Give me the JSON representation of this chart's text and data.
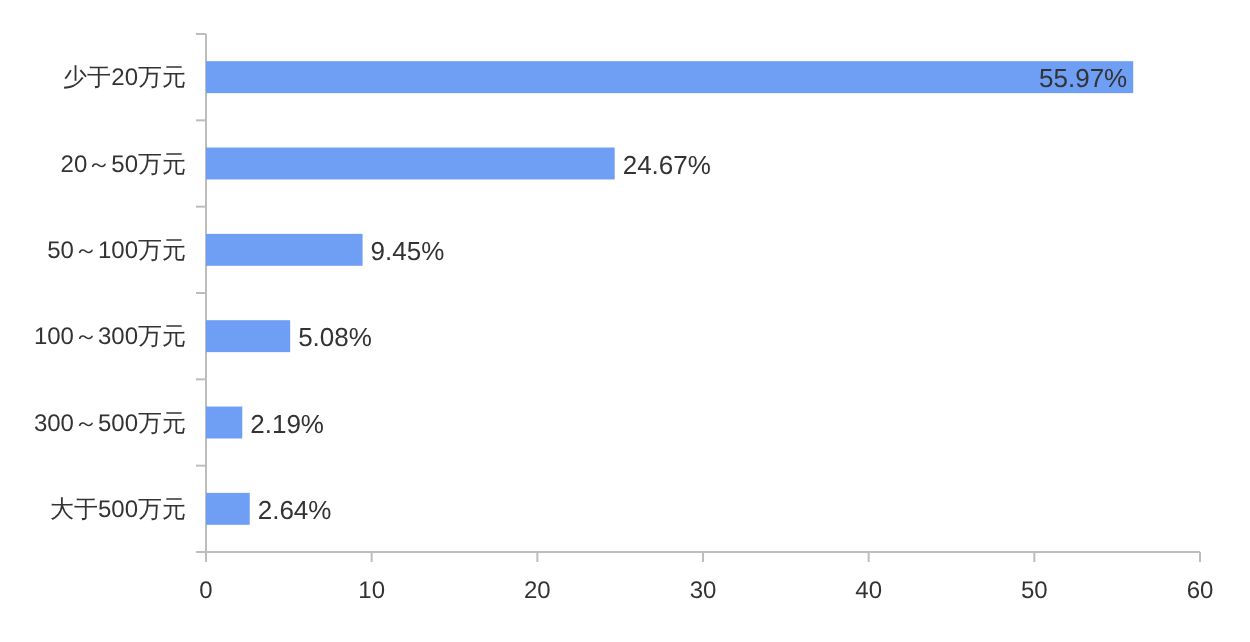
{
  "chart_data": {
    "type": "bar",
    "orientation": "horizontal",
    "categories": [
      "少于20万元",
      "20～50万元",
      "50～100万元",
      "100～300万元",
      "300～500万元",
      "大于500万元"
    ],
    "values": [
      55.97,
      24.67,
      9.45,
      5.08,
      2.19,
      2.64
    ],
    "value_labels": [
      "55.97%",
      "24.67%",
      "9.45%",
      "5.08%",
      "2.19%",
      "2.64%"
    ],
    "color": "#6f9ef5",
    "xlim": [
      0,
      60
    ],
    "xticks": [
      0,
      10,
      20,
      30,
      40,
      50,
      60
    ]
  }
}
